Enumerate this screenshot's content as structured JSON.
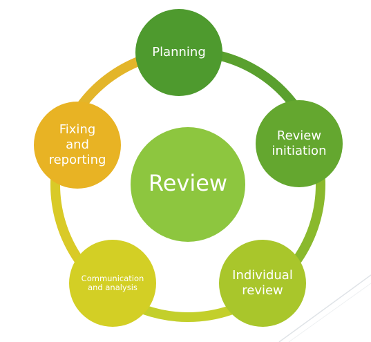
{
  "diagram": {
    "type": "cycle",
    "center": {
      "label": "Review",
      "color": "#8DC63F"
    },
    "nodes": [
      {
        "id": "planning",
        "lines": [
          "Planning"
        ],
        "color": "#4E9A2E"
      },
      {
        "id": "review-initiation",
        "lines": [
          "Review",
          "initiation"
        ],
        "color": "#64A72F"
      },
      {
        "id": "individual-review",
        "lines": [
          "Individual",
          "review"
        ],
        "color": "#A9C62B"
      },
      {
        "id": "communication-and-analysis",
        "lines": [
          "Communication",
          "and analysis"
        ],
        "color": "#D3CF25"
      },
      {
        "id": "fixing-and-reporting",
        "lines": [
          "Fixing",
          "and",
          "reporting"
        ],
        "color": "#E8B324"
      }
    ],
    "ring_colors": [
      "#5AA02E",
      "#8AB92D",
      "#C3CF2B",
      "#D9CA27",
      "#E3B52A"
    ]
  }
}
